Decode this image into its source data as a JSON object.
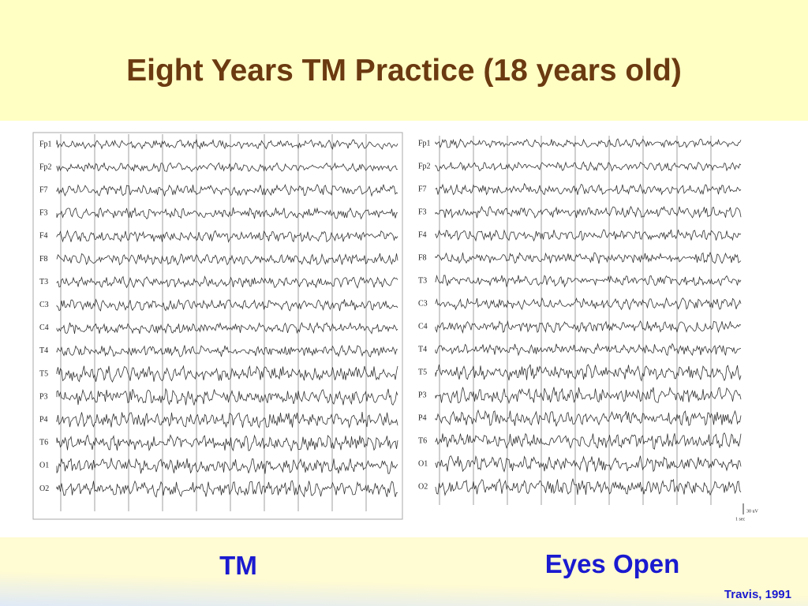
{
  "header": {
    "title": "Eight Years TM Practice (18 years old)"
  },
  "panels": [
    {
      "caption": "TM",
      "channels": [
        "Fp1",
        "Fp2",
        "F7",
        "F3",
        "F4",
        "F8",
        "T3",
        "C3",
        "C4",
        "T4",
        "T5",
        "P3",
        "P4",
        "T6",
        "O1",
        "O2"
      ]
    },
    {
      "caption": "Eyes Open",
      "channels": [
        "Fp1",
        "Fp2",
        "F7",
        "F3",
        "F4",
        "F8",
        "T3",
        "C3",
        "C4",
        "T4",
        "T5",
        "P3",
        "P4",
        "T6",
        "O1",
        "O2"
      ],
      "scale": {
        "amplitude": "30 uV",
        "time": "1 sec"
      }
    }
  ],
  "footer": {
    "citation": "Travis, 1991"
  }
}
